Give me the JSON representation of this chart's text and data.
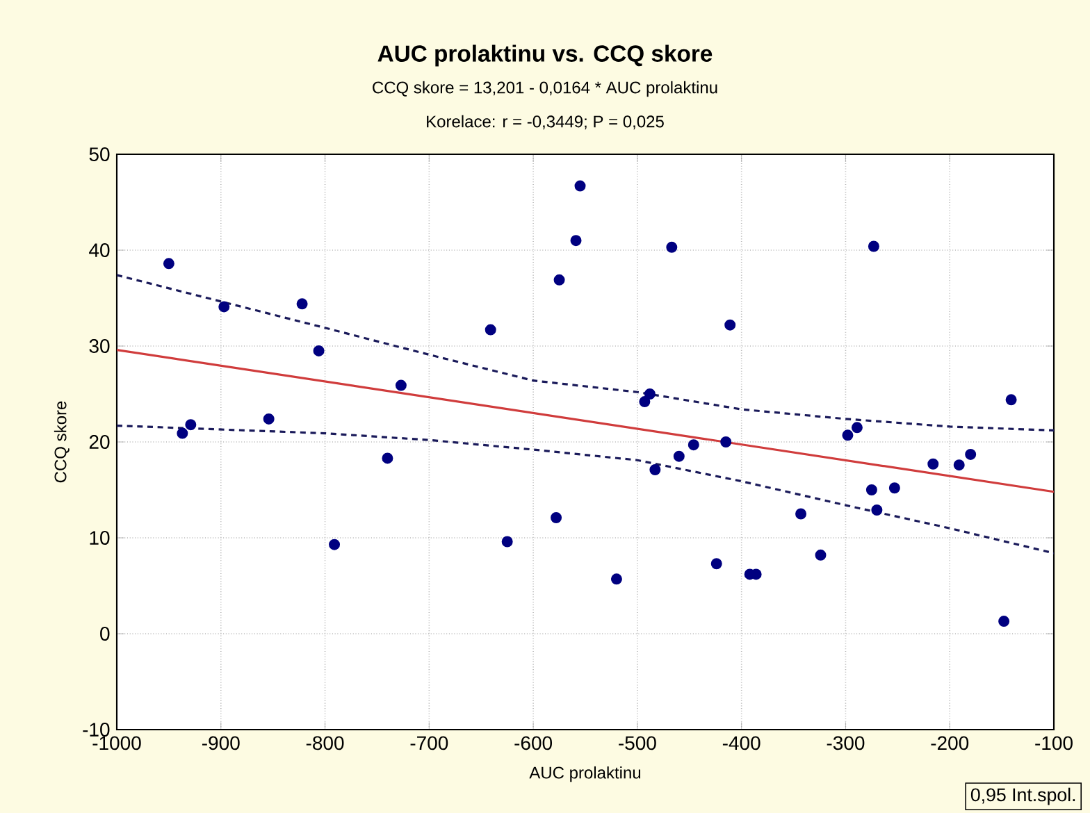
{
  "chart_data": {
    "type": "scatter",
    "title": "AUC prolaktinu vs. CCQ skore",
    "subtitle": "CCQ skore = 13,201 - 0,0164 * AUC prolaktinu",
    "annotations": [
      "Korelace: r = -0,3449; P = 0,025",
      "0,95 Int.spol."
    ],
    "xlabel": "AUC prolaktinu",
    "ylabel": "CCQ skore",
    "xlim": [
      -1000,
      -100
    ],
    "ylim": [
      -10,
      50
    ],
    "xticks": [
      -1000,
      -900,
      -800,
      -700,
      -600,
      -500,
      -400,
      -300,
      -200,
      -100
    ],
    "yticks": [
      -10,
      0,
      10,
      20,
      30,
      40,
      50
    ],
    "grid": true,
    "series": [
      {
        "color": "#000080",
        "marker": "circle",
        "x": [
          -950,
          -897,
          -822,
          -806,
          -929,
          -937,
          -854,
          -727,
          -740,
          -791,
          -641,
          -625,
          -578,
          -575,
          -559,
          -555,
          -467,
          -411,
          -493,
          -488,
          -483,
          -460,
          -446,
          -415,
          -520,
          -424,
          -392,
          -386,
          -343,
          -324,
          -298,
          -289,
          -273,
          -275,
          -270,
          -253,
          -216,
          -191,
          -180,
          -141,
          -148
        ],
        "values": [
          38.6,
          34.1,
          34.4,
          29.5,
          21.8,
          20.9,
          22.4,
          25.9,
          18.3,
          9.3,
          31.7,
          9.6,
          12.1,
          36.9,
          41.0,
          46.7,
          40.3,
          32.2,
          24.2,
          25.0,
          17.1,
          18.5,
          19.7,
          20.0,
          5.7,
          7.3,
          6.2,
          6.2,
          12.5,
          8.2,
          20.7,
          21.5,
          40.4,
          15.0,
          12.9,
          15.2,
          17.7,
          17.6,
          18.7,
          24.4,
          1.3
        ]
      },
      {
        "type": "line",
        "color": "#d03c3c",
        "line_style": "solid",
        "x": [
          -1000,
          -100
        ],
        "values": [
          29.6,
          14.8
        ]
      },
      {
        "type": "line",
        "color": "#1a1a5a",
        "marker": "none",
        "line_style": "dashed",
        "x": [
          -1000,
          -800,
          -700,
          -600,
          -500,
          -400,
          -300,
          -200,
          -100
        ],
        "values": [
          37.4,
          31.9,
          29.1,
          26.4,
          25.2,
          23.4,
          22.4,
          21.6,
          21.2
        ]
      },
      {
        "type": "line",
        "color": "#1a1a5a",
        "marker": "none",
        "line_style": "dashed",
        "x": [
          -1000,
          -800,
          -700,
          -600,
          -500,
          -400,
          -300,
          -200,
          -100
        ],
        "values": [
          21.7,
          20.9,
          20.2,
          19.2,
          18.1,
          15.9,
          13.4,
          11.0,
          8.4
        ]
      }
    ]
  }
}
